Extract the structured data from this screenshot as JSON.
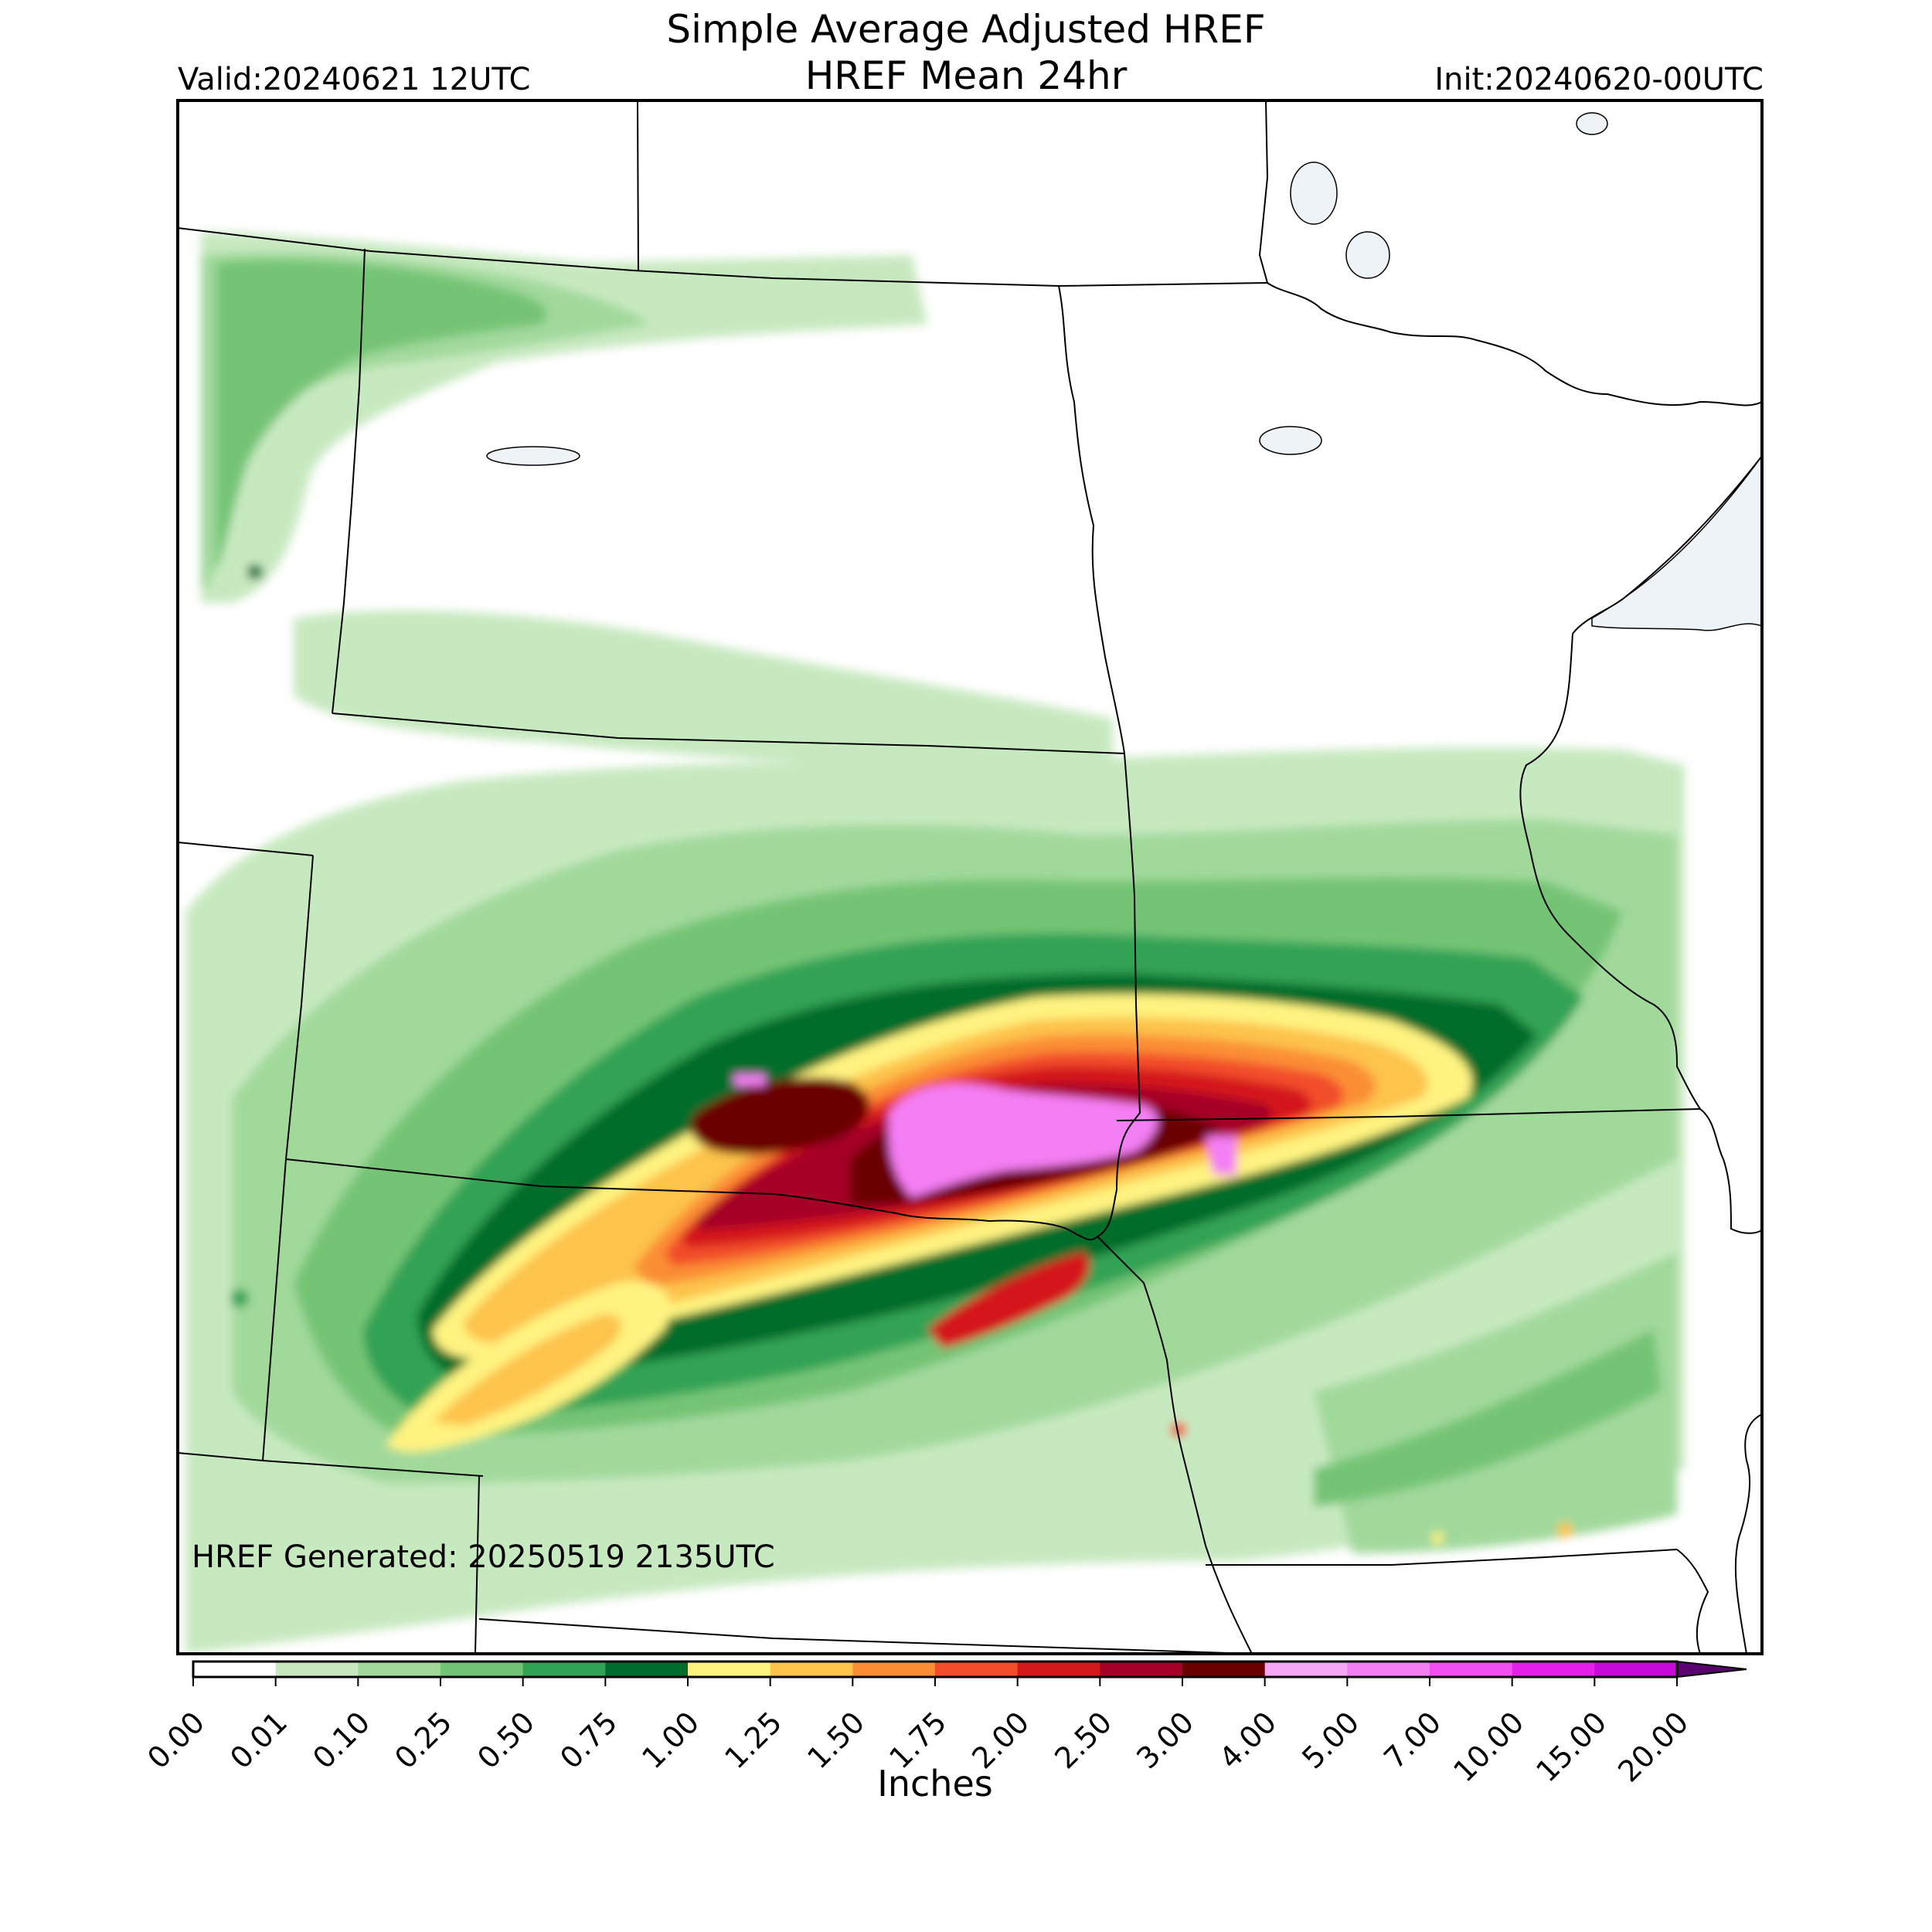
{
  "header": {
    "title_line1": "Simple Average Adjusted HREF",
    "title_line2": "HREF Mean 24hr",
    "valid": "Valid:20240621 12UTC",
    "init": "Init:20240620-00UTC"
  },
  "map": {
    "generated": "HREF Generated: 20250519 2135UTC",
    "colors": {
      "water": "#eef3f8",
      "border": "#000000"
    }
  },
  "colorbar": {
    "label": "Inches",
    "ticks": [
      "0.00",
      "0.01",
      "0.10",
      "0.25",
      "0.50",
      "0.75",
      "1.00",
      "1.25",
      "1.50",
      "1.75",
      "2.00",
      "2.50",
      "3.00",
      "4.00",
      "5.00",
      "7.00",
      "10.00",
      "15.00",
      "20.00"
    ],
    "colors": [
      "#ffffff",
      "#c7e9c0",
      "#a1d99b",
      "#74c476",
      "#31a354",
      "#006d2c",
      "#fff380",
      "#fdc34b",
      "#fb8e34",
      "#f24d2a",
      "#d4191c",
      "#a50027",
      "#6b0000",
      "#f6a8f6",
      "#f47ef4",
      "#f14ff1",
      "#e41fe9",
      "#c70ad9",
      "#8b00c0"
    ],
    "extend_color": "#5a0070"
  }
}
